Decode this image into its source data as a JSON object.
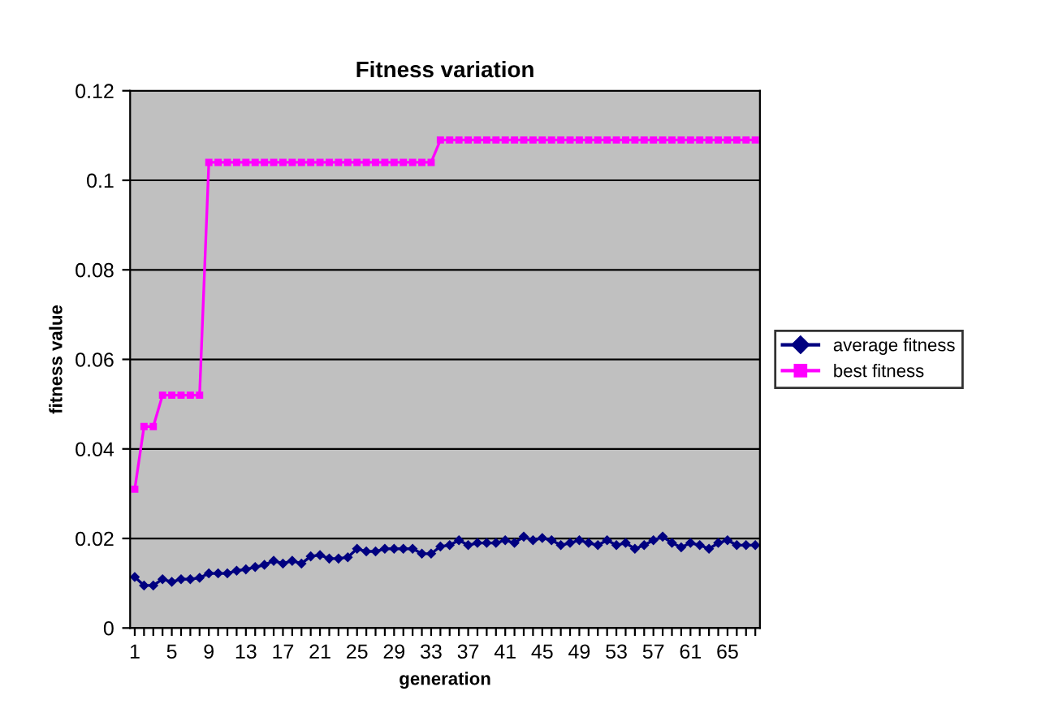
{
  "chart_data": {
    "type": "line",
    "title": "Fitness variation",
    "xlabel": "generation",
    "ylabel": "fitness value",
    "categories": [
      "1",
      null,
      null,
      null,
      "5",
      null,
      null,
      null,
      "9",
      null,
      null,
      null,
      "13",
      null,
      null,
      null,
      "17",
      null,
      null,
      null,
      "21",
      null,
      null,
      null,
      "25",
      null,
      null,
      null,
      "29",
      null,
      null,
      null,
      "33",
      null,
      null,
      null,
      "37",
      null,
      null,
      null,
      "41",
      null,
      null,
      null,
      "45",
      null,
      null,
      null,
      "49",
      null,
      null,
      null,
      "53",
      null,
      null,
      null,
      "57",
      null,
      null,
      null,
      "61",
      null,
      null,
      null,
      "65",
      null,
      null,
      null
    ],
    "series": [
      {
        "name": "average fitness",
        "color": "#000080",
        "marker": "diamond",
        "values": [
          0.0114,
          0.0095,
          0.0095,
          0.0109,
          0.0103,
          0.0109,
          0.0109,
          0.0112,
          0.0122,
          0.0122,
          0.0122,
          0.0128,
          0.0131,
          0.0136,
          0.0141,
          0.015,
          0.0144,
          0.015,
          0.0144,
          0.016,
          0.0163,
          0.0155,
          0.0155,
          0.0158,
          0.0177,
          0.0171,
          0.0171,
          0.0177,
          0.0177,
          0.0177,
          0.0177,
          0.0166,
          0.0166,
          0.0182,
          0.0185,
          0.0196,
          0.0185,
          0.019,
          0.019,
          0.019,
          0.0196,
          0.019,
          0.0204,
          0.0196,
          0.0201,
          0.0196,
          0.0185,
          0.019,
          0.0196,
          0.019,
          0.0185,
          0.0196,
          0.0185,
          0.019,
          0.0177,
          0.0185,
          0.0196,
          0.0204,
          0.019,
          0.018,
          0.019,
          0.0185,
          0.0177,
          0.019,
          0.0196,
          0.0185,
          0.0185,
          0.0185
        ]
      },
      {
        "name": "best fitness",
        "color": "#ff00ff",
        "marker": "square",
        "values": [
          0.031,
          0.045,
          0.045,
          0.052,
          0.052,
          0.052,
          0.052,
          0.052,
          0.104,
          0.104,
          0.104,
          0.104,
          0.104,
          0.104,
          0.104,
          0.104,
          0.104,
          0.104,
          0.104,
          0.104,
          0.104,
          0.104,
          0.104,
          0.104,
          0.104,
          0.104,
          0.104,
          0.104,
          0.104,
          0.104,
          0.104,
          0.104,
          0.104,
          0.109,
          0.109,
          0.109,
          0.109,
          0.109,
          0.109,
          0.109,
          0.109,
          0.109,
          0.109,
          0.109,
          0.109,
          0.109,
          0.109,
          0.109,
          0.109,
          0.109,
          0.109,
          0.109,
          0.109,
          0.109,
          0.109,
          0.109,
          0.109,
          0.109,
          0.109,
          0.109,
          0.109,
          0.109,
          0.109,
          0.109,
          0.109,
          0.109,
          0.109,
          0.109
        ]
      }
    ],
    "ylim": [
      0,
      0.12
    ],
    "yticks": [
      0,
      0.02,
      0.04,
      0.06,
      0.08,
      0.1,
      0.12
    ],
    "grid": "y",
    "legend": "right"
  }
}
